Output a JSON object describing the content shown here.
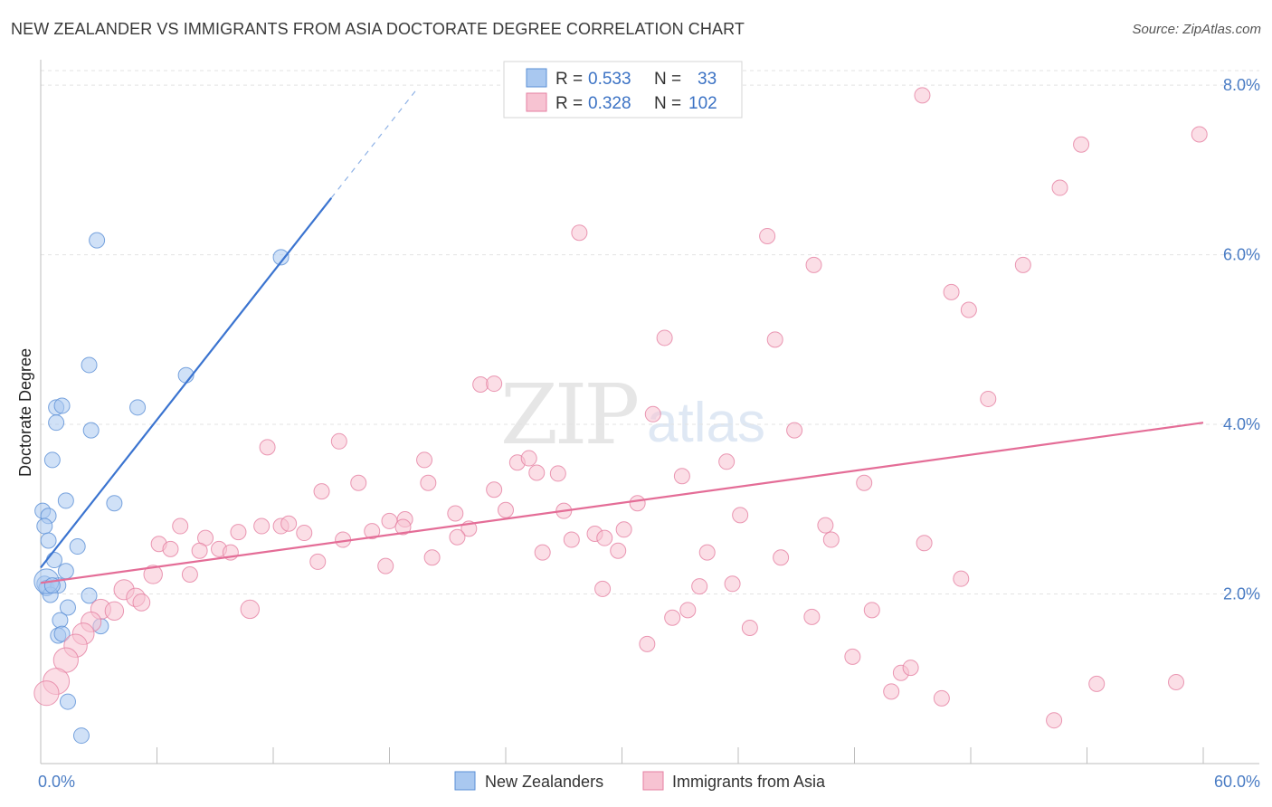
{
  "title": "NEW ZEALANDER VS IMMIGRANTS FROM ASIA DOCTORATE DEGREE CORRELATION CHART",
  "source": "Source: ZipAtlas.com",
  "watermark": {
    "zip": "ZIP",
    "atlas": "atlas"
  },
  "legend": {
    "r_label": "R =",
    "n_label": "N =",
    "rows": [
      {
        "r": "0.533",
        "n": "33",
        "color": "#a9c8f0",
        "stroke": "#5a8fd6"
      },
      {
        "r": "0.328",
        "n": "102",
        "color": "#f7c3d2",
        "stroke": "#e57fa1"
      }
    ]
  },
  "bottom_legend": [
    {
      "label": "New Zealanders",
      "color": "#a9c8f0",
      "stroke": "#5a8fd6"
    },
    {
      "label": "Immigrants from Asia",
      "color": "#f7c3d2",
      "stroke": "#e57fa1"
    }
  ],
  "chart_data": {
    "type": "scatter",
    "title": "NEW ZEALANDER VS IMMIGRANTS FROM ASIA DOCTORATE DEGREE CORRELATION CHART",
    "xlabel": "",
    "ylabel": "Doctorate Degree",
    "xlim": [
      0,
      60
    ],
    "ylim": [
      0,
      8.3
    ],
    "x_tick_labels": [
      "0.0%",
      "60.0%"
    ],
    "y_ticks": [
      2,
      4,
      6,
      8
    ],
    "y_tick_labels": [
      "2.0%",
      "4.0%",
      "6.0%",
      "8.0%"
    ],
    "grid": true,
    "legend_position": "top-center",
    "series": [
      {
        "name": "New Zealanders",
        "color": "#a9c8f0",
        "stroke": "#5a8fd6",
        "trend": {
          "x0": 0.0,
          "y0": 2.31,
          "x1": 15.0,
          "y1": 6.67,
          "dash_to_x": 19.5
        },
        "points": [
          {
            "x": 2.9,
            "y": 6.17,
            "s": 1
          },
          {
            "x": 12.4,
            "y": 5.97,
            "s": 1
          },
          {
            "x": 2.5,
            "y": 4.7,
            "s": 1
          },
          {
            "x": 7.5,
            "y": 4.58,
            "s": 1
          },
          {
            "x": 0.8,
            "y": 4.2,
            "s": 1
          },
          {
            "x": 1.1,
            "y": 4.22,
            "s": 1
          },
          {
            "x": 5.0,
            "y": 4.2,
            "s": 1
          },
          {
            "x": 0.8,
            "y": 4.02,
            "s": 1
          },
          {
            "x": 2.6,
            "y": 3.93,
            "s": 1
          },
          {
            "x": 0.6,
            "y": 3.58,
            "s": 1
          },
          {
            "x": 1.3,
            "y": 3.1,
            "s": 1
          },
          {
            "x": 3.8,
            "y": 3.07,
            "s": 1
          },
          {
            "x": 0.1,
            "y": 2.98,
            "s": 1
          },
          {
            "x": 0.4,
            "y": 2.92,
            "s": 1
          },
          {
            "x": 0.2,
            "y": 2.8,
            "s": 1
          },
          {
            "x": 0.4,
            "y": 2.63,
            "s": 1
          },
          {
            "x": 1.9,
            "y": 2.56,
            "s": 1
          },
          {
            "x": 0.7,
            "y": 2.4,
            "s": 1
          },
          {
            "x": 1.3,
            "y": 2.27,
            "s": 1
          },
          {
            "x": 0.2,
            "y": 2.12,
            "s": 1
          },
          {
            "x": 0.3,
            "y": 2.07,
            "s": 1
          },
          {
            "x": 0.9,
            "y": 2.1,
            "s": 1
          },
          {
            "x": 0.5,
            "y": 1.99,
            "s": 1
          },
          {
            "x": 2.5,
            "y": 1.98,
            "s": 1
          },
          {
            "x": 1.4,
            "y": 1.84,
            "s": 1
          },
          {
            "x": 1.0,
            "y": 1.69,
            "s": 1
          },
          {
            "x": 3.1,
            "y": 1.62,
            "s": 1
          },
          {
            "x": 0.9,
            "y": 1.51,
            "s": 1
          },
          {
            "x": 1.1,
            "y": 1.53,
            "s": 1
          },
          {
            "x": 1.4,
            "y": 0.73,
            "s": 1
          },
          {
            "x": 2.1,
            "y": 0.33,
            "s": 1
          },
          {
            "x": 0.3,
            "y": 2.15,
            "s": 1.6
          },
          {
            "x": 0.6,
            "y": 2.1,
            "s": 1
          }
        ]
      },
      {
        "name": "Immigrants from Asia",
        "color": "#f7c3d2",
        "stroke": "#e57fa1",
        "trend": {
          "x0": 0.0,
          "y0": 2.13,
          "x1": 60.0,
          "y1": 4.02
        },
        "points": [
          {
            "x": 45.5,
            "y": 7.88,
            "s": 1
          },
          {
            "x": 59.8,
            "y": 7.42,
            "s": 1
          },
          {
            "x": 53.7,
            "y": 7.3,
            "s": 1
          },
          {
            "x": 52.6,
            "y": 6.79,
            "s": 1
          },
          {
            "x": 27.8,
            "y": 6.26,
            "s": 1
          },
          {
            "x": 37.5,
            "y": 6.22,
            "s": 1
          },
          {
            "x": 39.9,
            "y": 5.88,
            "s": 1
          },
          {
            "x": 50.7,
            "y": 5.88,
            "s": 1
          },
          {
            "x": 47.0,
            "y": 5.56,
            "s": 1
          },
          {
            "x": 47.9,
            "y": 5.35,
            "s": 1
          },
          {
            "x": 32.2,
            "y": 5.02,
            "s": 1
          },
          {
            "x": 37.9,
            "y": 5.0,
            "s": 1
          },
          {
            "x": 22.7,
            "y": 4.47,
            "s": 1
          },
          {
            "x": 23.4,
            "y": 4.48,
            "s": 1
          },
          {
            "x": 48.9,
            "y": 4.3,
            "s": 1
          },
          {
            "x": 31.6,
            "y": 4.12,
            "s": 1
          },
          {
            "x": 38.9,
            "y": 3.93,
            "s": 1
          },
          {
            "x": 15.4,
            "y": 3.8,
            "s": 1
          },
          {
            "x": 11.7,
            "y": 3.73,
            "s": 1
          },
          {
            "x": 19.8,
            "y": 3.58,
            "s": 1
          },
          {
            "x": 24.6,
            "y": 3.55,
            "s": 1
          },
          {
            "x": 25.2,
            "y": 3.6,
            "s": 1
          },
          {
            "x": 35.4,
            "y": 3.56,
            "s": 1
          },
          {
            "x": 25.6,
            "y": 3.43,
            "s": 1
          },
          {
            "x": 26.7,
            "y": 3.42,
            "s": 1
          },
          {
            "x": 33.1,
            "y": 3.39,
            "s": 1
          },
          {
            "x": 16.4,
            "y": 3.31,
            "s": 1
          },
          {
            "x": 20.0,
            "y": 3.31,
            "s": 1
          },
          {
            "x": 42.5,
            "y": 3.31,
            "s": 1
          },
          {
            "x": 14.5,
            "y": 3.21,
            "s": 1
          },
          {
            "x": 23.4,
            "y": 3.23,
            "s": 1
          },
          {
            "x": 30.8,
            "y": 3.07,
            "s": 1
          },
          {
            "x": 24.0,
            "y": 2.99,
            "s": 1
          },
          {
            "x": 27.0,
            "y": 2.98,
            "s": 1
          },
          {
            "x": 21.4,
            "y": 2.95,
            "s": 1
          },
          {
            "x": 36.1,
            "y": 2.93,
            "s": 1
          },
          {
            "x": 18.0,
            "y": 2.86,
            "s": 1
          },
          {
            "x": 18.8,
            "y": 2.88,
            "s": 1
          },
          {
            "x": 7.2,
            "y": 2.8,
            "s": 1
          },
          {
            "x": 11.4,
            "y": 2.8,
            "s": 1
          },
          {
            "x": 12.4,
            "y": 2.8,
            "s": 1
          },
          {
            "x": 12.8,
            "y": 2.83,
            "s": 1
          },
          {
            "x": 18.7,
            "y": 2.79,
            "s": 1
          },
          {
            "x": 22.1,
            "y": 2.77,
            "s": 1
          },
          {
            "x": 30.1,
            "y": 2.76,
            "s": 1
          },
          {
            "x": 40.5,
            "y": 2.81,
            "s": 1
          },
          {
            "x": 10.2,
            "y": 2.73,
            "s": 1
          },
          {
            "x": 13.6,
            "y": 2.72,
            "s": 1
          },
          {
            "x": 17.1,
            "y": 2.74,
            "s": 1
          },
          {
            "x": 28.6,
            "y": 2.71,
            "s": 1
          },
          {
            "x": 8.5,
            "y": 2.66,
            "s": 1
          },
          {
            "x": 15.6,
            "y": 2.64,
            "s": 1
          },
          {
            "x": 21.5,
            "y": 2.67,
            "s": 1
          },
          {
            "x": 27.4,
            "y": 2.64,
            "s": 1
          },
          {
            "x": 29.1,
            "y": 2.66,
            "s": 1
          },
          {
            "x": 40.8,
            "y": 2.64,
            "s": 1
          },
          {
            "x": 6.1,
            "y": 2.59,
            "s": 1
          },
          {
            "x": 45.6,
            "y": 2.6,
            "s": 1
          },
          {
            "x": 6.7,
            "y": 2.53,
            "s": 1
          },
          {
            "x": 8.2,
            "y": 2.51,
            "s": 1
          },
          {
            "x": 9.2,
            "y": 2.53,
            "s": 1
          },
          {
            "x": 9.8,
            "y": 2.49,
            "s": 1
          },
          {
            "x": 25.9,
            "y": 2.49,
            "s": 1
          },
          {
            "x": 29.8,
            "y": 2.51,
            "s": 1
          },
          {
            "x": 34.4,
            "y": 2.49,
            "s": 1
          },
          {
            "x": 20.2,
            "y": 2.43,
            "s": 1
          },
          {
            "x": 38.2,
            "y": 2.43,
            "s": 1
          },
          {
            "x": 14.3,
            "y": 2.38,
            "s": 1
          },
          {
            "x": 17.8,
            "y": 2.33,
            "s": 1
          },
          {
            "x": 5.8,
            "y": 2.23,
            "s": 1.2
          },
          {
            "x": 7.7,
            "y": 2.23,
            "s": 1
          },
          {
            "x": 47.5,
            "y": 2.18,
            "s": 1
          },
          {
            "x": 35.7,
            "y": 2.12,
            "s": 1
          },
          {
            "x": 34.0,
            "y": 2.09,
            "s": 1
          },
          {
            "x": 29.0,
            "y": 2.06,
            "s": 1
          },
          {
            "x": 4.3,
            "y": 2.05,
            "s": 1.3
          },
          {
            "x": 4.9,
            "y": 1.96,
            "s": 1.2
          },
          {
            "x": 5.2,
            "y": 1.9,
            "s": 1.1
          },
          {
            "x": 10.8,
            "y": 1.82,
            "s": 1.2
          },
          {
            "x": 33.4,
            "y": 1.81,
            "s": 1
          },
          {
            "x": 42.9,
            "y": 1.81,
            "s": 1
          },
          {
            "x": 3.1,
            "y": 1.82,
            "s": 1.3
          },
          {
            "x": 3.8,
            "y": 1.8,
            "s": 1.2
          },
          {
            "x": 32.6,
            "y": 1.72,
            "s": 1
          },
          {
            "x": 39.8,
            "y": 1.73,
            "s": 1
          },
          {
            "x": 2.6,
            "y": 1.67,
            "s": 1.3
          },
          {
            "x": 36.6,
            "y": 1.6,
            "s": 1
          },
          {
            "x": 2.2,
            "y": 1.53,
            "s": 1.4
          },
          {
            "x": 1.8,
            "y": 1.39,
            "s": 1.5
          },
          {
            "x": 31.3,
            "y": 1.41,
            "s": 1
          },
          {
            "x": 1.3,
            "y": 1.22,
            "s": 1.6
          },
          {
            "x": 41.9,
            "y": 1.26,
            "s": 1
          },
          {
            "x": 44.4,
            "y": 1.07,
            "s": 1
          },
          {
            "x": 44.9,
            "y": 1.13,
            "s": 1
          },
          {
            "x": 0.8,
            "y": 0.97,
            "s": 1.7
          },
          {
            "x": 0.3,
            "y": 0.83,
            "s": 1.6
          },
          {
            "x": 54.5,
            "y": 0.94,
            "s": 1
          },
          {
            "x": 58.6,
            "y": 0.96,
            "s": 1
          },
          {
            "x": 43.9,
            "y": 0.85,
            "s": 1
          },
          {
            "x": 46.5,
            "y": 0.77,
            "s": 1
          },
          {
            "x": 52.3,
            "y": 0.51,
            "s": 1
          }
        ]
      }
    ]
  }
}
